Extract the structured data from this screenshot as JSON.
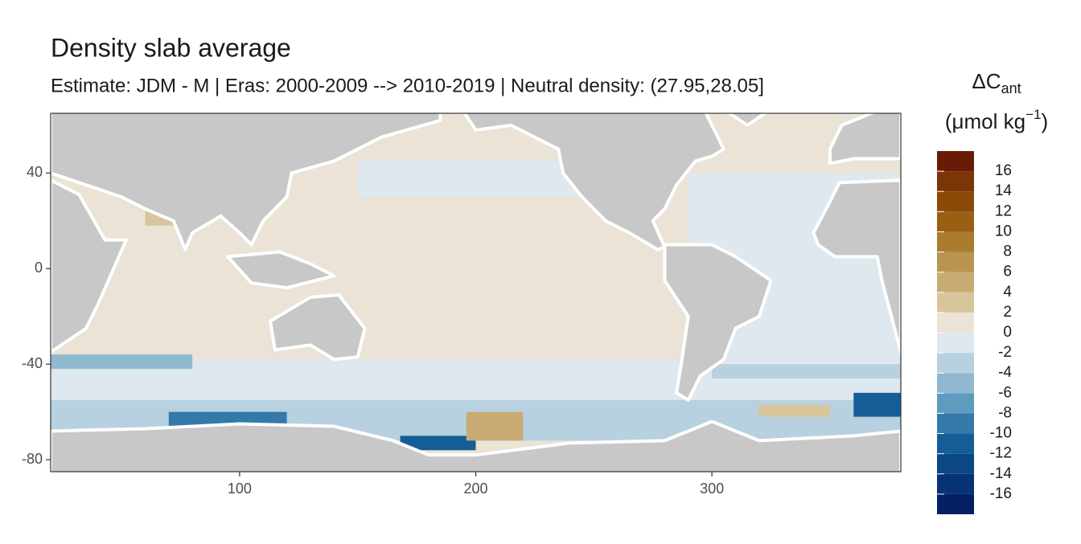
{
  "chart_data": {
    "type": "map",
    "title": "Density slab average",
    "subtitle": "Estimate: JDM - M | Eras: 2000-2009 --> 2010-2019 | Neutral density: (27.95,28.05]",
    "xlim": [
      20,
      380
    ],
    "ylim": [
      -85,
      65
    ],
    "xticks": [
      100,
      200,
      300
    ],
    "yticks": [
      40,
      0,
      -40,
      -80
    ],
    "land_color": "#c8c8c8",
    "legend": {
      "title": "ΔC",
      "title_sub": "ant",
      "unit_open": "(μmol kg",
      "unit_sup": "−1",
      "unit_close": ")",
      "bins": [
        -18,
        -16,
        -14,
        -12,
        -10,
        -8,
        -6,
        -4,
        -2,
        0,
        2,
        4,
        6,
        8,
        10,
        12,
        14,
        16,
        18
      ],
      "colors": [
        "#041f64",
        "#073276",
        "#0b4785",
        "#155d96",
        "#3479aa",
        "#5f9bbf",
        "#8fb8d1",
        "#b7d1e0",
        "#dfe8ee",
        "#eae3d6",
        "#d9c59c",
        "#c8ab73",
        "#b8944f",
        "#a97c30",
        "#9a5f12",
        "#8c4a08",
        "#7c3506",
        "#6a1b05"
      ],
      "ticks": [
        16,
        14,
        12,
        10,
        8,
        6,
        4,
        2,
        0,
        -2,
        -4,
        -6,
        -8,
        -10,
        -12,
        -14,
        -16
      ]
    }
  }
}
